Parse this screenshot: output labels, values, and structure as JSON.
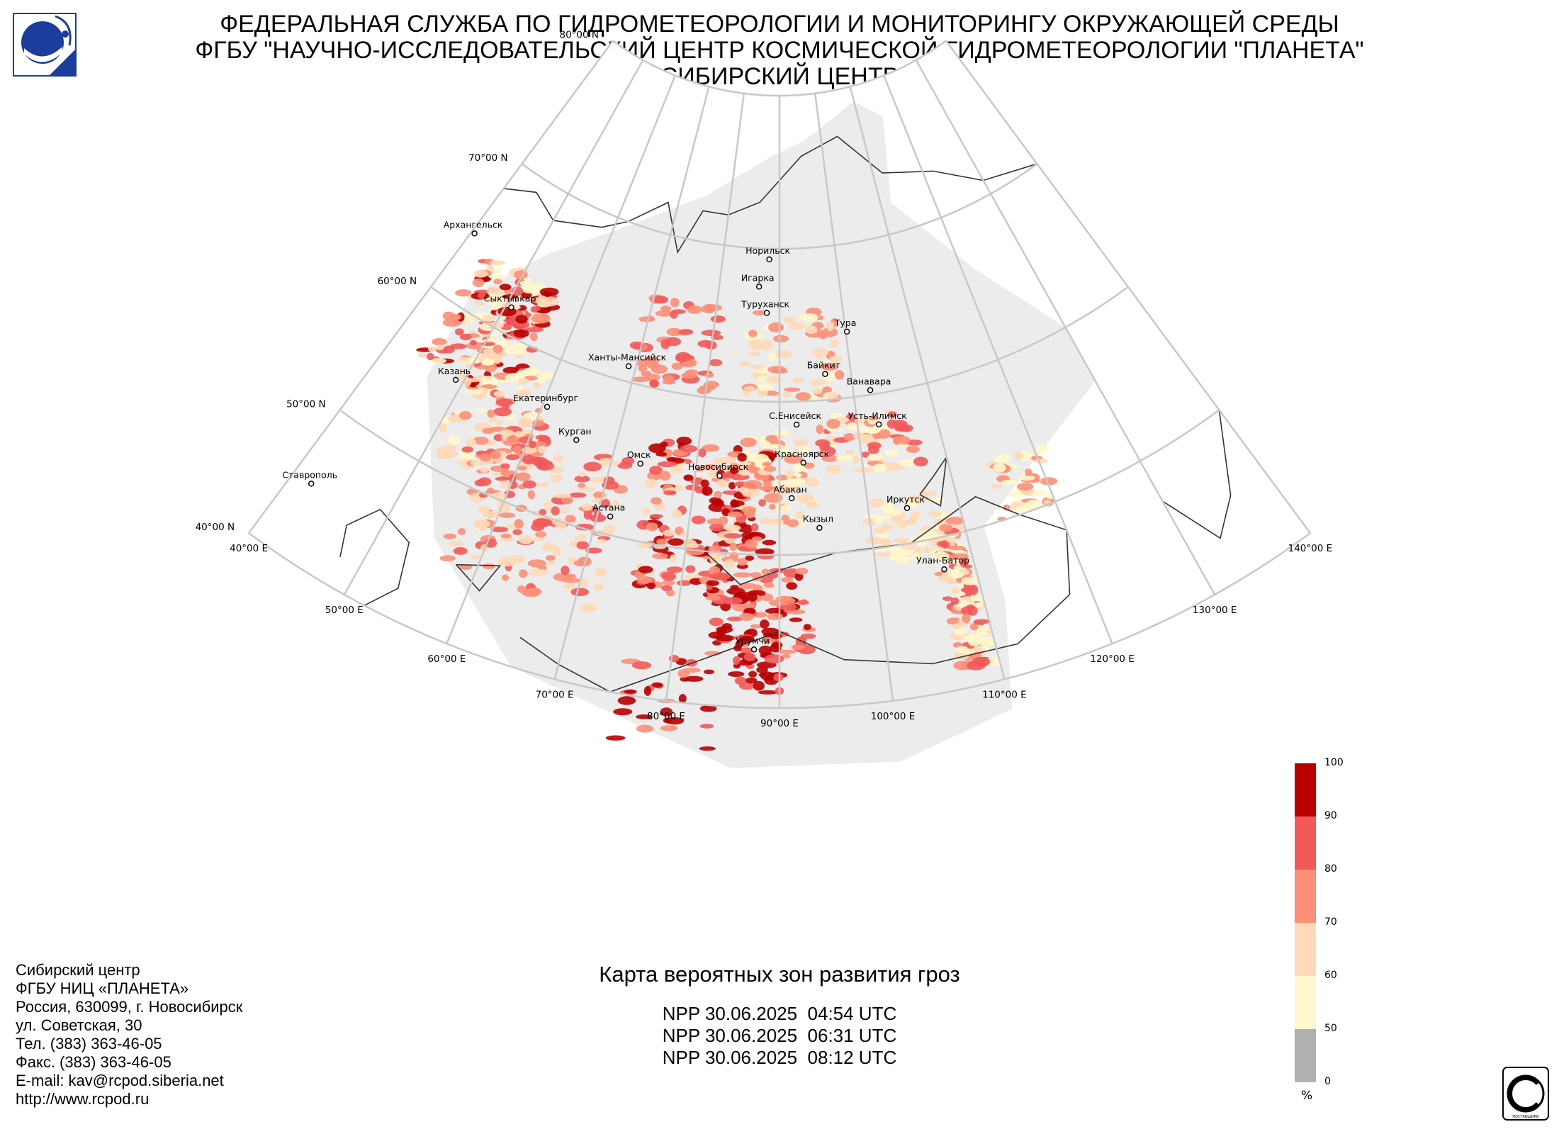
{
  "header": {
    "line1": "ФЕДЕРАЛЬНАЯ СЛУЖБА ПО ГИДРОМЕТЕОРОЛОГИИ И МОНИТОРИНГУ ОКРУЖАЮЩЕЙ СРЕДЫ",
    "line2": "ФГБУ \"НАУЧНО-ИССЛЕДОВАТЕЛЬСКИЙ ЦЕНТР КОСМИЧЕСКОЙ ГИДРОМЕТЕОРОЛОГИИ \"ПЛАНЕТА\"",
    "line3": "СИБИРСКИЙ ЦЕНТР"
  },
  "map": {
    "title": "Карта вероятных зон развития гроз",
    "passes": [
      "NPP 30.06.2025  04:54 UTC",
      "NPP 30.06.2025  06:31 UTC",
      "NPP 30.06.2025  08:12 UTC"
    ],
    "lat_labels": [
      "80°00 N",
      "70°00 N",
      "60°00 N",
      "50°00 N",
      "40°00 N"
    ],
    "lon_labels": [
      "40°00 E",
      "50°00 E",
      "60°00 E",
      "70°00 E",
      "80°00 E",
      "90°00 E",
      "100°00 E",
      "110°00 E",
      "120°00 E",
      "130°00 E",
      "140°00 E"
    ],
    "cities": [
      {
        "name": "Архангельск"
      },
      {
        "name": "Сыктывкар"
      },
      {
        "name": "Казань"
      },
      {
        "name": "Ставрополь"
      },
      {
        "name": "Екатеринбург"
      },
      {
        "name": "Ханты-Мансийск"
      },
      {
        "name": "Курган"
      },
      {
        "name": "Омск"
      },
      {
        "name": "Астана"
      },
      {
        "name": "Новосибирск"
      },
      {
        "name": "Норильск"
      },
      {
        "name": "Игарка"
      },
      {
        "name": "Туруханск"
      },
      {
        "name": "Тура"
      },
      {
        "name": "Байкит"
      },
      {
        "name": "С.Енисейск"
      },
      {
        "name": "Ванавара"
      },
      {
        "name": "Усть-Илимск"
      },
      {
        "name": "Красноярск"
      },
      {
        "name": "Абакан"
      },
      {
        "name": "Иркутск"
      },
      {
        "name": "Кызыл"
      },
      {
        "name": "Улан-Батор"
      },
      {
        "name": "Урумчи"
      }
    ]
  },
  "legend": {
    "unit": "%",
    "ticks": [
      "100",
      "90",
      "80",
      "70",
      "60",
      "50",
      "0"
    ],
    "colors": [
      "#b80000",
      "#f25a5a",
      "#fb8f78",
      "#ffd9b8",
      "#fff7cc",
      "#b0b0b0"
    ]
  },
  "address": {
    "lines": [
      "Сибирский центр",
      "ФГБУ НИЦ «ПЛАНЕТА»",
      "Россия, 630099, г. Новосибирск",
      "ул. Советская, 30",
      "Тел. (383) 363-46-05",
      "Факс. (383) 363-46-05",
      "E-mail: kav@rcpod.siberia.net",
      "http://www.rcpod.ru"
    ]
  },
  "iso_badge": "ИСО 9001 -2015"
}
